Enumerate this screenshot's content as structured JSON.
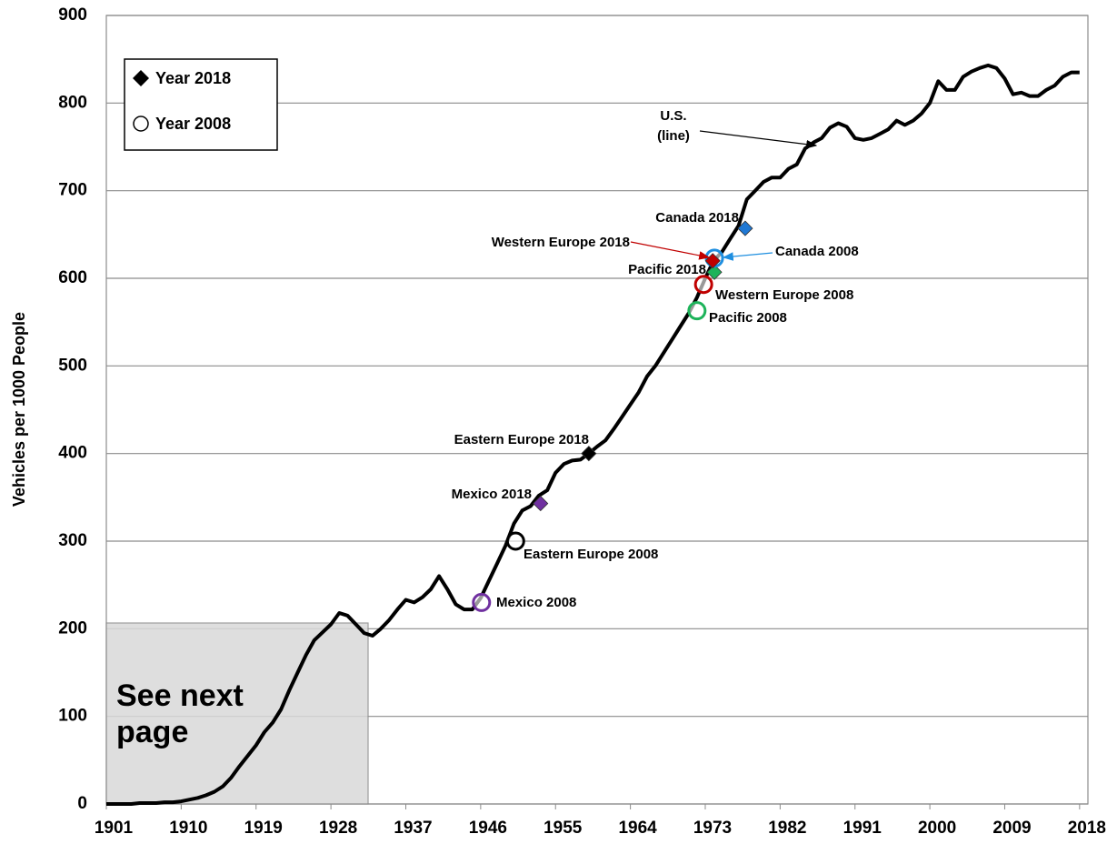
{
  "chart_data": {
    "type": "line",
    "y_label": "Vehicles per 1000 People",
    "xlim": [
      1901,
      2019
    ],
    "xticks": [
      1901,
      1910,
      1919,
      1928,
      1937,
      1946,
      1955,
      1964,
      1973,
      1982,
      1991,
      2000,
      2009,
      2018
    ],
    "ylim": [
      0,
      900
    ],
    "yticks": [
      0,
      100,
      200,
      300,
      400,
      500,
      600,
      700,
      800,
      900
    ],
    "grid": true,
    "x": [
      1901,
      1902,
      1903,
      1904,
      1905,
      1906,
      1907,
      1908,
      1909,
      1910,
      1911,
      1912,
      1913,
      1914,
      1915,
      1916,
      1917,
      1918,
      1919,
      1920,
      1921,
      1922,
      1923,
      1924,
      1925,
      1926,
      1927,
      1928,
      1929,
      1930,
      1931,
      1932,
      1933,
      1934,
      1935,
      1936,
      1937,
      1938,
      1939,
      1940,
      1941,
      1942,
      1943,
      1944,
      1945,
      1946,
      1947,
      1948,
      1949,
      1950,
      1951,
      1952,
      1953,
      1954,
      1955,
      1956,
      1957,
      1958,
      1959,
      1960,
      1961,
      1962,
      1963,
      1964,
      1965,
      1966,
      1967,
      1968,
      1969,
      1970,
      1971,
      1972,
      1973,
      1974,
      1975,
      1976,
      1977,
      1978,
      1979,
      1980,
      1981,
      1982,
      1983,
      1984,
      1985,
      1986,
      1987,
      1988,
      1989,
      1990,
      1991,
      1992,
      1993,
      1994,
      1995,
      1996,
      1997,
      1998,
      1999,
      2000,
      2001,
      2002,
      2003,
      2004,
      2005,
      2006,
      2007,
      2008,
      2009,
      2010,
      2011,
      2012,
      2013,
      2014,
      2015,
      2016,
      2017,
      2018
    ],
    "series": [
      {
        "name": "U.S.",
        "color": "#000000",
        "values": [
          0,
          0,
          0,
          0,
          1,
          1,
          1,
          2,
          2,
          3,
          5,
          7,
          10,
          14,
          20,
          30,
          43,
          55,
          67,
          82,
          93,
          108,
          130,
          150,
          170,
          187,
          196,
          205,
          218,
          215,
          205,
          195,
          192,
          200,
          210,
          222,
          233,
          230,
          236,
          245,
          260,
          245,
          228,
          222,
          222,
          235,
          255,
          275,
          295,
          320,
          335,
          340,
          352,
          358,
          378,
          388,
          392,
          393,
          400,
          408,
          415,
          428,
          442,
          456,
          470,
          488,
          500,
          515,
          530,
          545,
          560,
          578,
          600,
          620,
          630,
          645,
          660,
          690,
          700,
          710,
          715,
          715,
          725,
          730,
          748,
          755,
          760,
          772,
          777,
          773,
          760,
          758,
          760,
          765,
          770,
          780,
          775,
          780,
          788,
          800,
          825,
          815,
          815,
          830,
          836,
          840,
          843,
          840,
          828,
          810,
          812,
          808,
          808,
          815,
          820,
          830,
          835,
          835
        ]
      }
    ],
    "points": [
      {
        "label": "Canada 2018",
        "marker": "diamond",
        "color": "#1f78d4",
        "x": 1977.8,
        "y": 657
      },
      {
        "label": "Canada 2008",
        "marker": "circle",
        "color": "#1f8fe0",
        "x": 1974.1,
        "y": 623
      },
      {
        "label": "Western Europe 2018",
        "marker": "diamond",
        "color": "#c00000",
        "x": 1973.9,
        "y": 620
      },
      {
        "label": "Pacific 2018",
        "marker": "diamond",
        "color": "#1db35a",
        "x": 1974.1,
        "y": 607
      },
      {
        "label": "Western Europe 2008",
        "marker": "circle",
        "color": "#c00000",
        "x": 1972.8,
        "y": 593
      },
      {
        "label": "Pacific 2008",
        "marker": "circle",
        "color": "#1db35a",
        "x": 1972.0,
        "y": 563
      },
      {
        "label": "Eastern Europe 2018",
        "marker": "diamond",
        "color": "#000000",
        "x": 1959.0,
        "y": 400
      },
      {
        "label": "Mexico 2018",
        "marker": "diamond",
        "color": "#7030a0",
        "x": 1953.2,
        "y": 343
      },
      {
        "label": "Eastern Europe 2008",
        "marker": "circle",
        "color": "#000000",
        "x": 1950.2,
        "y": 300
      },
      {
        "label": "Mexico 2008",
        "marker": "circle",
        "color": "#7030a0",
        "x": 1946.1,
        "y": 230
      }
    ],
    "legend": [
      "Year 2018",
      "Year 2008"
    ],
    "line_annotation": [
      "U.S.",
      "(line)"
    ],
    "box_note": [
      "See next",
      "page"
    ]
  }
}
